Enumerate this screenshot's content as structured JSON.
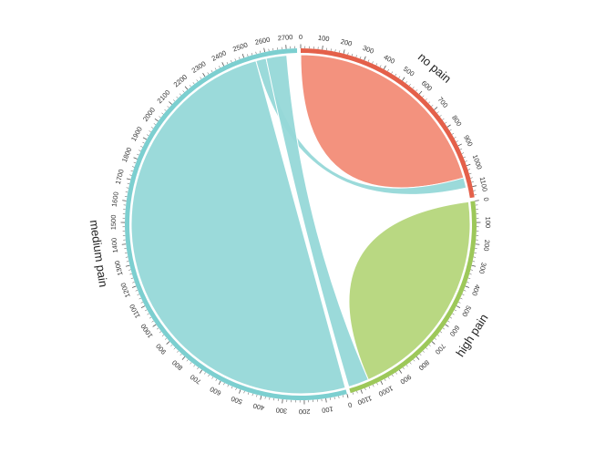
{
  "chart_data": {
    "type": "chord",
    "groups": [
      {
        "name": "no pain",
        "total": 1150,
        "color": "#e4604a",
        "chord_color": "#f28c77",
        "ticks": [
          0,
          100,
          200,
          300,
          400,
          500,
          600,
          700,
          800,
          900,
          1000,
          1100
        ]
      },
      {
        "name": "high pain",
        "total": 1150,
        "color": "#9dc85a",
        "chord_color": "#b5d67b",
        "ticks": [
          0,
          100,
          200,
          300,
          400,
          500,
          600,
          700,
          800,
          900,
          1000,
          1100
        ]
      },
      {
        "name": "medium pain",
        "total": 2750,
        "color": "#7ccfd0",
        "chord_color": "#96d8d8",
        "ticks": [
          0,
          100,
          200,
          300,
          400,
          500,
          600,
          700,
          800,
          900,
          1000,
          1100,
          1200,
          1300,
          1400,
          1500,
          1600,
          1700,
          1800,
          1900,
          2000,
          2100,
          2200,
          2300,
          2400,
          2500,
          2600,
          2700
        ]
      }
    ],
    "links": [
      {
        "from": "no pain",
        "to": "no pain",
        "value": 1050
      },
      {
        "from": "high pain",
        "to": "high pain",
        "value": 1050
      },
      {
        "from": "medium pain",
        "to": "medium pain",
        "value": 2550
      },
      {
        "from": "medium pain",
        "to": "no pain",
        "value": 50
      },
      {
        "from": "medium pain",
        "to": "high pain",
        "value": 100
      }
    ]
  }
}
